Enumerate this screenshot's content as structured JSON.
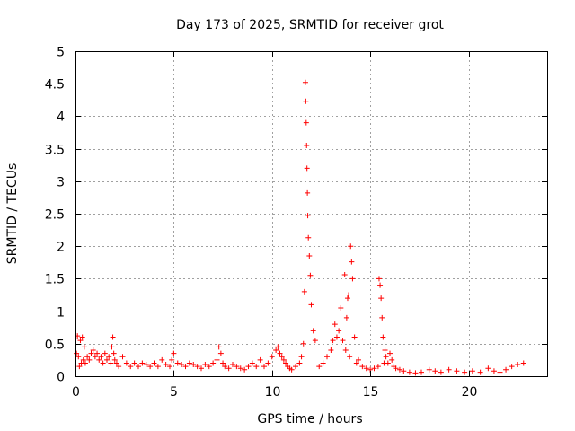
{
  "chart_data": {
    "type": "scatter",
    "title": "Day 173 of 2025, SRMTID for receiver grot",
    "xlabel": "GPS time / hours",
    "ylabel": "SRMTID / TECUs",
    "xlim": [
      0,
      24
    ],
    "ylim": [
      0,
      5
    ],
    "xticks": [
      0,
      5,
      10,
      15,
      20
    ],
    "yticks": [
      0,
      0.5,
      1,
      1.5,
      2,
      2.5,
      3,
      3.5,
      4,
      4.5,
      5
    ],
    "grid": true,
    "marker": "plus",
    "color": "#ff0000",
    "series": [
      {
        "name": "SRMTID",
        "x": [
          0.05,
          0.1,
          0.15,
          0.2,
          0.25,
          0.3,
          0.35,
          0.4,
          0.45,
          0.5,
          0.6,
          0.7,
          0.8,
          0.9,
          1.0,
          1.1,
          1.2,
          1.3,
          1.4,
          1.5,
          1.6,
          1.7,
          1.8,
          1.85,
          1.9,
          1.95,
          2.0,
          2.1,
          2.2,
          2.4,
          2.6,
          2.8,
          3.0,
          3.2,
          3.4,
          3.6,
          3.8,
          4.0,
          4.2,
          4.4,
          4.6,
          4.8,
          4.9,
          5.0,
          5.2,
          5.4,
          5.6,
          5.8,
          6.0,
          6.2,
          6.4,
          6.6,
          6.8,
          7.0,
          7.2,
          7.3,
          7.4,
          7.5,
          7.6,
          7.8,
          8.0,
          8.2,
          8.4,
          8.6,
          8.8,
          9.0,
          9.2,
          9.4,
          9.6,
          9.8,
          10.0,
          10.2,
          10.3,
          10.4,
          10.5,
          10.6,
          10.7,
          10.8,
          10.9,
          11.0,
          11.2,
          11.4,
          11.5,
          11.6,
          11.65,
          11.7,
          11.72,
          11.74,
          11.76,
          11.78,
          11.8,
          11.82,
          11.85,
          11.9,
          11.95,
          12.0,
          12.1,
          12.2,
          12.4,
          12.6,
          12.8,
          13.0,
          13.1,
          13.2,
          13.3,
          13.4,
          13.5,
          13.6,
          13.7,
          13.75,
          13.8,
          13.85,
          13.9,
          13.95,
          14.0,
          14.05,
          14.1,
          14.2,
          14.3,
          14.4,
          14.6,
          14.8,
          15.0,
          15.2,
          15.4,
          15.45,
          15.5,
          15.55,
          15.6,
          15.65,
          15.7,
          15.75,
          15.8,
          15.9,
          16.0,
          16.1,
          16.2,
          16.3,
          16.5,
          16.7,
          17.0,
          17.3,
          17.6,
          18.0,
          18.3,
          18.6,
          19.0,
          19.4,
          19.8,
          20.2,
          20.6,
          21.0,
          21.3,
          21.6,
          21.9,
          22.2,
          22.5,
          22.8
        ],
        "y": [
          0.35,
          0.62,
          0.3,
          0.15,
          0.55,
          0.2,
          0.6,
          0.25,
          0.45,
          0.2,
          0.3,
          0.25,
          0.35,
          0.4,
          0.3,
          0.35,
          0.25,
          0.3,
          0.2,
          0.35,
          0.25,
          0.3,
          0.2,
          0.45,
          0.6,
          0.35,
          0.25,
          0.2,
          0.15,
          0.3,
          0.2,
          0.15,
          0.2,
          0.15,
          0.2,
          0.18,
          0.15,
          0.2,
          0.15,
          0.25,
          0.18,
          0.15,
          0.25,
          0.35,
          0.2,
          0.18,
          0.15,
          0.2,
          0.18,
          0.15,
          0.12,
          0.18,
          0.15,
          0.2,
          0.25,
          0.45,
          0.35,
          0.2,
          0.15,
          0.12,
          0.18,
          0.15,
          0.12,
          0.1,
          0.15,
          0.2,
          0.15,
          0.25,
          0.15,
          0.2,
          0.3,
          0.4,
          0.45,
          0.35,
          0.3,
          0.25,
          0.2,
          0.15,
          0.12,
          0.1,
          0.15,
          0.2,
          0.3,
          0.5,
          1.3,
          4.52,
          4.23,
          3.9,
          3.55,
          3.2,
          2.82,
          2.47,
          2.13,
          1.85,
          1.55,
          1.1,
          0.7,
          0.55,
          0.15,
          0.2,
          0.3,
          0.4,
          0.55,
          0.8,
          0.6,
          0.7,
          1.05,
          0.55,
          1.56,
          0.4,
          0.9,
          1.2,
          1.25,
          0.3,
          2.0,
          1.76,
          1.5,
          0.6,
          0.2,
          0.25,
          0.15,
          0.12,
          0.1,
          0.12,
          0.15,
          1.5,
          1.4,
          1.2,
          0.9,
          0.6,
          0.2,
          0.4,
          0.3,
          0.2,
          0.35,
          0.25,
          0.15,
          0.12,
          0.1,
          0.08,
          0.06,
          0.05,
          0.06,
          0.1,
          0.08,
          0.06,
          0.1,
          0.08,
          0.06,
          0.08,
          0.06,
          0.12,
          0.08,
          0.06,
          0.1,
          0.15,
          0.18,
          0.2
        ]
      }
    ]
  }
}
